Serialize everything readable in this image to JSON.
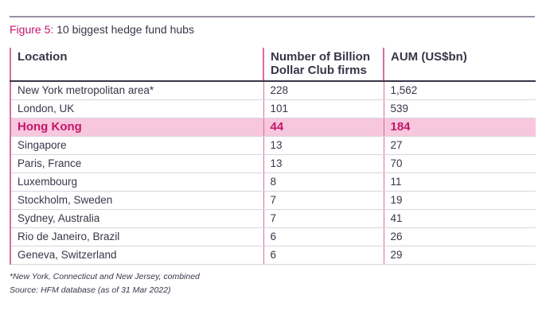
{
  "figure": {
    "label": "Figure 5:",
    "title": " 10 biggest hedge fund hubs"
  },
  "table": {
    "headers": [
      "Location",
      "Number of Billion Dollar Club firms",
      "AUM (US$bn)"
    ],
    "rows": [
      {
        "location": "New York metropolitan area*",
        "firms": "228",
        "aum": "1,562"
      },
      {
        "location": "London, UK",
        "firms": "101",
        "aum": "539"
      },
      {
        "location": "Hong Kong",
        "firms": "44",
        "aum": "184",
        "highlighted": true
      },
      {
        "location": "Singapore",
        "firms": "13",
        "aum": "27"
      },
      {
        "location": "Paris, France",
        "firms": "13",
        "aum": "70"
      },
      {
        "location": "Luxembourg",
        "firms": "8",
        "aum": "11"
      },
      {
        "location": "Stockholm, Sweden",
        "firms": "7",
        "aum": "19"
      },
      {
        "location": "Sydney, Australia",
        "firms": "7",
        "aum": "41"
      },
      {
        "location": "Rio de Janeiro, Brazil",
        "firms": "6",
        "aum": "26"
      },
      {
        "location": "Geneva, Switzerland",
        "firms": "6",
        "aum": "29"
      }
    ]
  },
  "footnotes": {
    "note": "*New York, Connecticut and New Jersey, combined",
    "source": "Source: HFM database (as of 31 Mar 2022)"
  },
  "colors": {
    "accent": "#c3166b",
    "highlight_bg": "#f7c7dd",
    "column_rule": "#d46ea1",
    "text": "#3a3548"
  }
}
